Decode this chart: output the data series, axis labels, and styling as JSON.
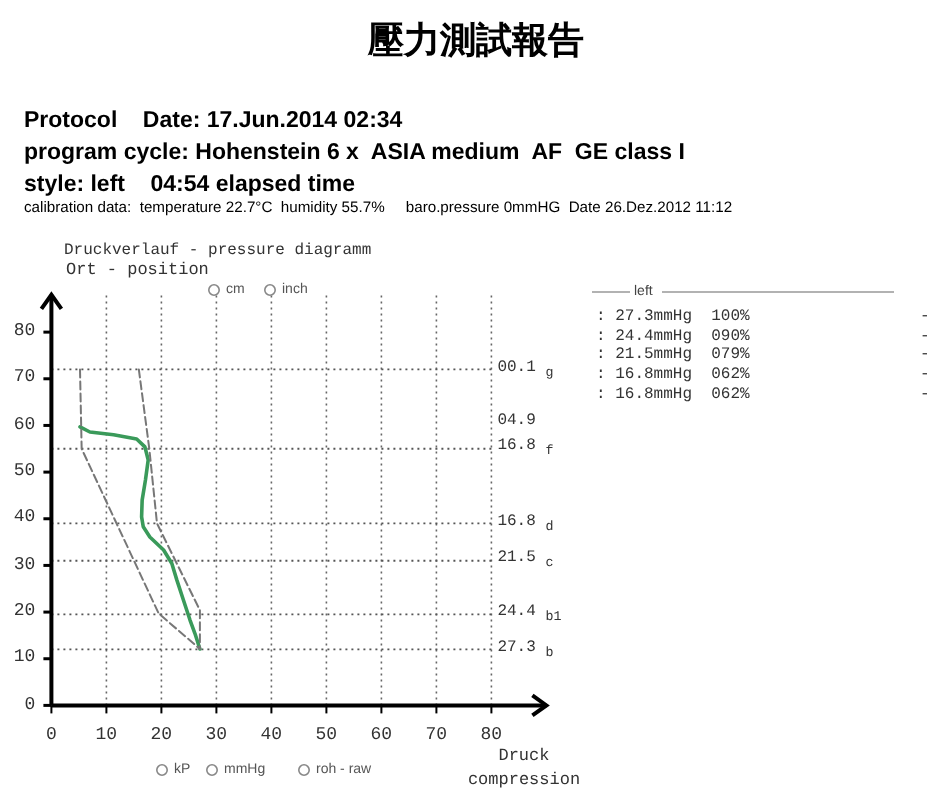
{
  "chart_data": {
    "type": "line",
    "title": "壓力測試報告",
    "subtitle": "Druckverlauf - pressure diagramm",
    "xlabel": "Druck compression",
    "ylabel": "Ort - position",
    "xlim": [
      0,
      90
    ],
    "ylim": [
      0,
      88
    ],
    "xticks": [
      0,
      10,
      20,
      30,
      40,
      50,
      60,
      70,
      80
    ],
    "yticks": [
      0,
      10,
      20,
      30,
      40,
      50,
      60,
      70,
      80
    ],
    "grid": "x",
    "marker": "none",
    "series": [
      {
        "color": "#3a9a5a",
        "line_style": "solid",
        "x": [
          5.2,
          7.0,
          11.3,
          15.5,
          17.0,
          17.6,
          17.1,
          16.5,
          16.4,
          16.7,
          17.9,
          20.4,
          21.9,
          22.8,
          24.0,
          25.2,
          26.1,
          27.0
        ],
        "values": [
          59.7,
          58.6,
          58,
          57.1,
          55.4,
          52.6,
          48.3,
          44,
          40.4,
          38.3,
          36.1,
          33.3,
          30.4,
          26.9,
          22.6,
          18.3,
          15.4,
          12.1
        ]
      },
      {
        "color": "#777777",
        "line_style": "dashed",
        "x": [
          15.9,
          17.8,
          19.2,
          27.0,
          27.0
        ],
        "values": [
          72,
          55,
          39,
          20.4,
          12.1
        ]
      },
      {
        "color": "#777777",
        "line_style": "dashed",
        "x": [
          5.2,
          5.5,
          19.5,
          27.0
        ],
        "values": [
          72,
          55,
          19.7,
          12.1
        ]
      }
    ],
    "ref_lines": [
      {
        "axis": "y",
        "value": 72,
        "label": "00.1 $_{g}$",
        "color": "#555555",
        "line_style": "dotted"
      },
      {
        "axis": "y",
        "value": 55,
        "label": "16.8 $_{f}$",
        "color": "#555555",
        "line_style": "dotted"
      },
      {
        "axis": "y",
        "value": 39,
        "label": "16.8 $_{d}$",
        "color": "#555555",
        "line_style": "dotted"
      },
      {
        "axis": "y",
        "value": 31,
        "label": "21.5 $_{c}$",
        "color": "#555555",
        "line_style": "dotted"
      },
      {
        "axis": "y",
        "value": 19.5,
        "label": "24.4 $_{b1}$",
        "color": "#555555",
        "line_style": "dotted"
      },
      {
        "axis": "y",
        "value": 12,
        "label": "27.3 $_{b}$",
        "color": "#555555",
        "line_style": "dotted"
      }
    ],
    "annotations": [
      "Protocol    Date: 17.Jun.2014 02:34",
      "program cycle: Hohenstein 6 x  ASIA medium  AF  GE class I",
      "style: left    04:54 elapsed time",
      "calibration data:  temperature 22.7°C  humidity 55.7%     baro.pressure 0mmHG  Date 26.Dez.2012 11:12",
      "cm",
      "inch",
      "kP",
      "mmHg",
      "roh - raw",
      "left",
      ": 27.3mmHg  100%",
      ": 24.4mmHg  090%",
      ": 21.5mmHg  079%",
      ": 16.8mmHg  062%",
      ": 16.8mmHg  062%",
      "-",
      "-",
      "-",
      "-",
      "-",
      "04.9"
    ]
  }
}
